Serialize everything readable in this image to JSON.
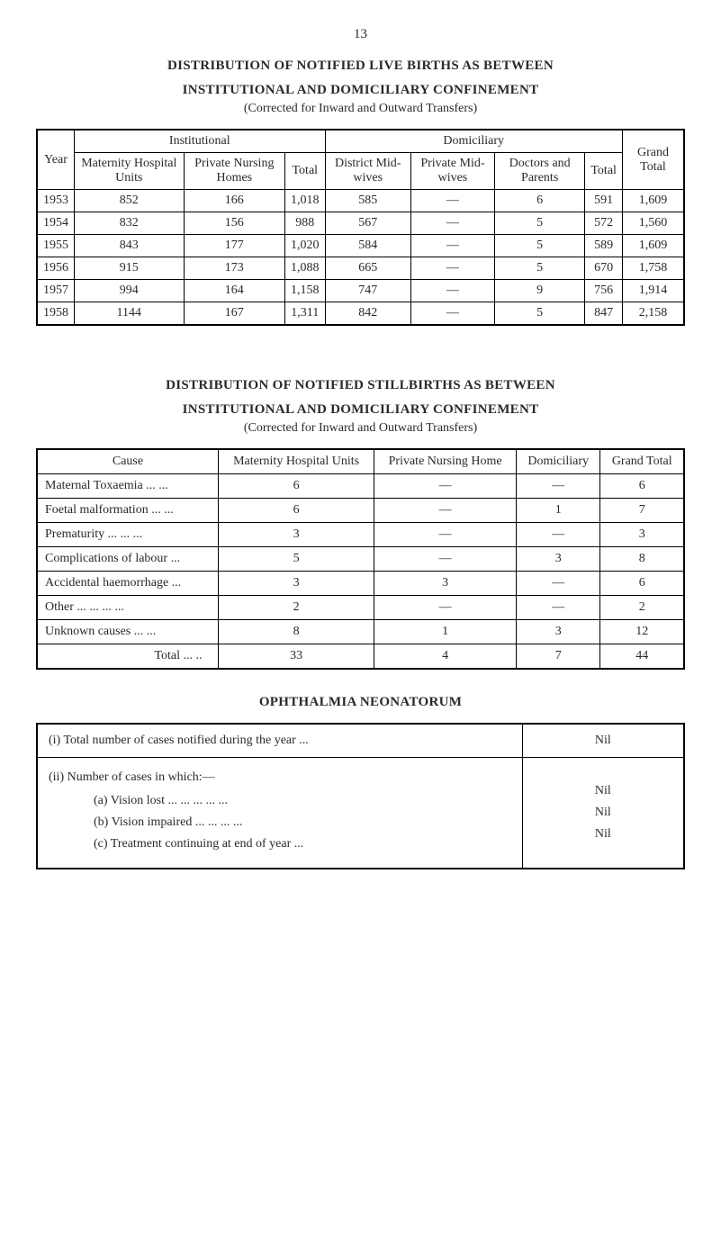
{
  "pageNumber": "13",
  "section1": {
    "title1": "DISTRIBUTION OF NOTIFIED LIVE BIRTHS AS BETWEEN",
    "title2": "INSTITUTIONAL AND DOMICILIARY CONFINEMENT",
    "subtitle": "(Corrected for Inward and Outward Transfers)",
    "headers": {
      "year": "Year",
      "institutional": "Institutional",
      "domiciliary": "Domiciliary",
      "grandTotal": "Grand Total",
      "maternity": "Maternity Hospital Units",
      "privateNursing": "Private Nursing Homes",
      "total1": "Total",
      "district": "District Mid-wives",
      "privateMid": "Private Mid-wives",
      "doctors": "Doctors and Parents",
      "total2": "Total"
    },
    "rows": [
      {
        "year": "1953",
        "mat": "852",
        "pn": "166",
        "t1": "1,018",
        "dist": "585",
        "pm": "—",
        "doc": "6",
        "t2": "591",
        "gt": "1,609"
      },
      {
        "year": "1954",
        "mat": "832",
        "pn": "156",
        "t1": "988",
        "dist": "567",
        "pm": "—",
        "doc": "5",
        "t2": "572",
        "gt": "1,560"
      },
      {
        "year": "1955",
        "mat": "843",
        "pn": "177",
        "t1": "1,020",
        "dist": "584",
        "pm": "—",
        "doc": "5",
        "t2": "589",
        "gt": "1,609"
      },
      {
        "year": "1956",
        "mat": "915",
        "pn": "173",
        "t1": "1,088",
        "dist": "665",
        "pm": "—",
        "doc": "5",
        "t2": "670",
        "gt": "1,758"
      },
      {
        "year": "1957",
        "mat": "994",
        "pn": "164",
        "t1": "1,158",
        "dist": "747",
        "pm": "—",
        "doc": "9",
        "t2": "756",
        "gt": "1,914"
      },
      {
        "year": "1958",
        "mat": "1144",
        "pn": "167",
        "t1": "1,311",
        "dist": "842",
        "pm": "—",
        "doc": "5",
        "t2": "847",
        "gt": "2,158"
      }
    ]
  },
  "section2": {
    "title1": "DISTRIBUTION OF NOTIFIED STILLBIRTHS AS BETWEEN",
    "title2": "INSTITUTIONAL AND DOMICILIARY CONFINEMENT",
    "subtitle": "(Corrected for Inward and Outward Transfers)",
    "headers": {
      "cause": "Cause",
      "maternity": "Maternity Hospital Units",
      "private": "Private Nursing Home",
      "dom": "Domiciliary",
      "grand": "Grand Total"
    },
    "rows": [
      {
        "cause": "Maternal Toxaemia ...      ...",
        "mat": "6",
        "pn": "—",
        "dom": "—",
        "gt": "6"
      },
      {
        "cause": "Foetal malformation ...    ...",
        "mat": "6",
        "pn": "—",
        "dom": "1",
        "gt": "7"
      },
      {
        "cause": "Prematurity ...      ...      ...",
        "mat": "3",
        "pn": "—",
        "dom": "—",
        "gt": "3"
      },
      {
        "cause": "Complications of labour    ...",
        "mat": "5",
        "pn": "—",
        "dom": "3",
        "gt": "8"
      },
      {
        "cause": "Accidental haemorrhage    ...",
        "mat": "3",
        "pn": "3",
        "dom": "—",
        "gt": "6"
      },
      {
        "cause": "Other ...      ...      ...      ...",
        "mat": "2",
        "pn": "—",
        "dom": "—",
        "gt": "2"
      },
      {
        "cause": "Unknown causes      ...    ...",
        "mat": "8",
        "pn": "1",
        "dom": "3",
        "gt": "12"
      }
    ],
    "totalRow": {
      "cause": "Total      ...    ..",
      "mat": "33",
      "pn": "4",
      "dom": "7",
      "gt": "44"
    }
  },
  "section3": {
    "title": "OPHTHALMIA NEONATORUM",
    "row1Label": "(i)  Total number of cases notified during the year        ...",
    "row1Val": "Nil",
    "row2Heading": "(ii)  Number of cases in which:—",
    "items": [
      {
        "label": "(a)  Vision lost          ...      ...      ...      ...      ...",
        "val": "Nil"
      },
      {
        "label": "(b)  Vision impaired          ...      ...      ...      ...",
        "val": "Nil"
      },
      {
        "label": "(c)  Treatment continuing at end of year          ...",
        "val": "Nil"
      }
    ]
  }
}
